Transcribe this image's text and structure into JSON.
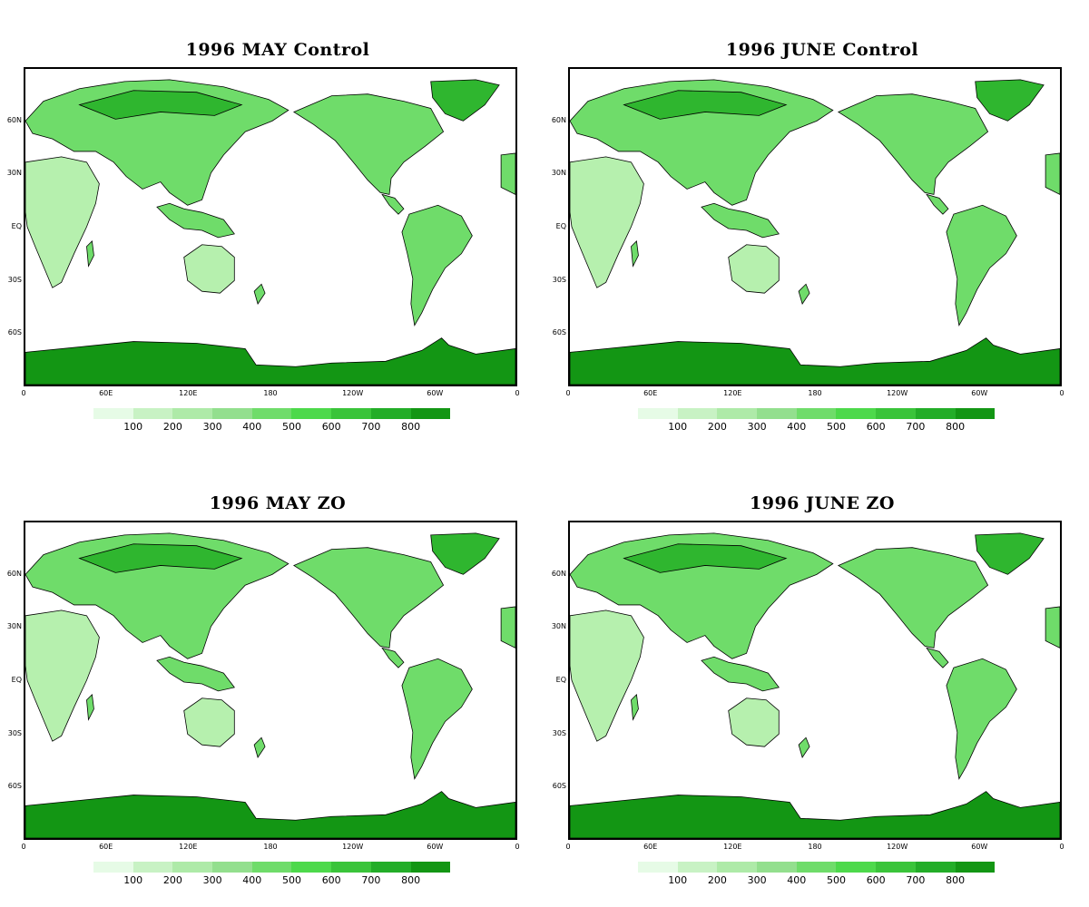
{
  "panels": [
    {
      "title": "1996 MAY Control"
    },
    {
      "title": "1996 JUNE Control"
    },
    {
      "title": "1996 MAY ZO"
    },
    {
      "title": "1996 JUNE ZO"
    }
  ],
  "axes": {
    "lat_labels": [
      "60N",
      "30N",
      "EQ",
      "30S",
      "60S"
    ],
    "lon_labels": [
      "0",
      "60E",
      "120E",
      "180",
      "120W",
      "60W",
      "0"
    ]
  },
  "colorbar": {
    "labels": [
      "100",
      "200",
      "300",
      "400",
      "500",
      "600",
      "700",
      "800"
    ],
    "colors": [
      "#e6fbe6",
      "#c8f2c4",
      "#aeeaa8",
      "#93df8e",
      "#6fdc6a",
      "#4dd94b",
      "#3ac43a",
      "#23ad28",
      "#139614"
    ]
  },
  "colors": {
    "land_light": "#b6f0ae",
    "land_mid": "#6fdc6a",
    "land_dark": "#2fb62f",
    "ice": "#139614",
    "ocean": "#ffffff"
  }
}
